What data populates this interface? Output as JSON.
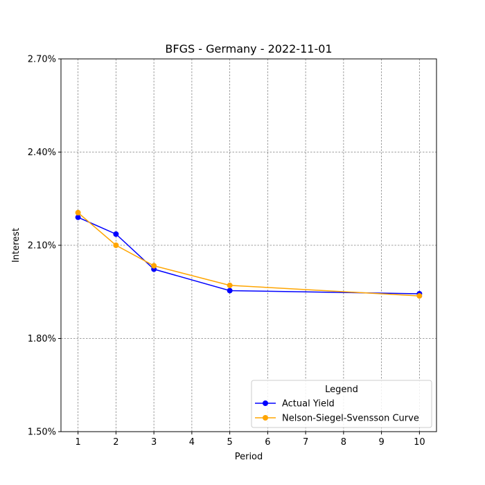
{
  "chart_data": {
    "type": "line",
    "title": "BFGS - Germany - 2022-11-01",
    "xlabel": "Period",
    "ylabel": "Interest",
    "xlim": [
      0.55,
      10.45
    ],
    "ylim": [
      0.015,
      0.027
    ],
    "x_ticks": [
      1,
      2,
      3,
      4,
      5,
      6,
      7,
      8,
      9,
      10
    ],
    "y_ticks": [
      0.015,
      0.018,
      0.021,
      0.024,
      0.027
    ],
    "y_tick_labels": [
      "1.50%",
      "1.80%",
      "2.10%",
      "2.40%",
      "2.70%"
    ],
    "grid": true,
    "legend": {
      "title": "Legend",
      "placement": "lower-right"
    },
    "series": [
      {
        "name": "Actual Yield",
        "color": "#0000ff",
        "marker": "circle",
        "x": [
          1,
          2,
          3,
          5,
          10
        ],
        "values": [
          0.0219,
          0.02136,
          0.02023,
          0.01954,
          0.01944
        ]
      },
      {
        "name": "Nelson-Siegel-Svensson Curve",
        "color": "#ffa500",
        "marker": "circle",
        "x": [
          1,
          2,
          3,
          5,
          10
        ],
        "values": [
          0.02205,
          0.021,
          0.02034,
          0.01971,
          0.01937
        ]
      }
    ]
  }
}
